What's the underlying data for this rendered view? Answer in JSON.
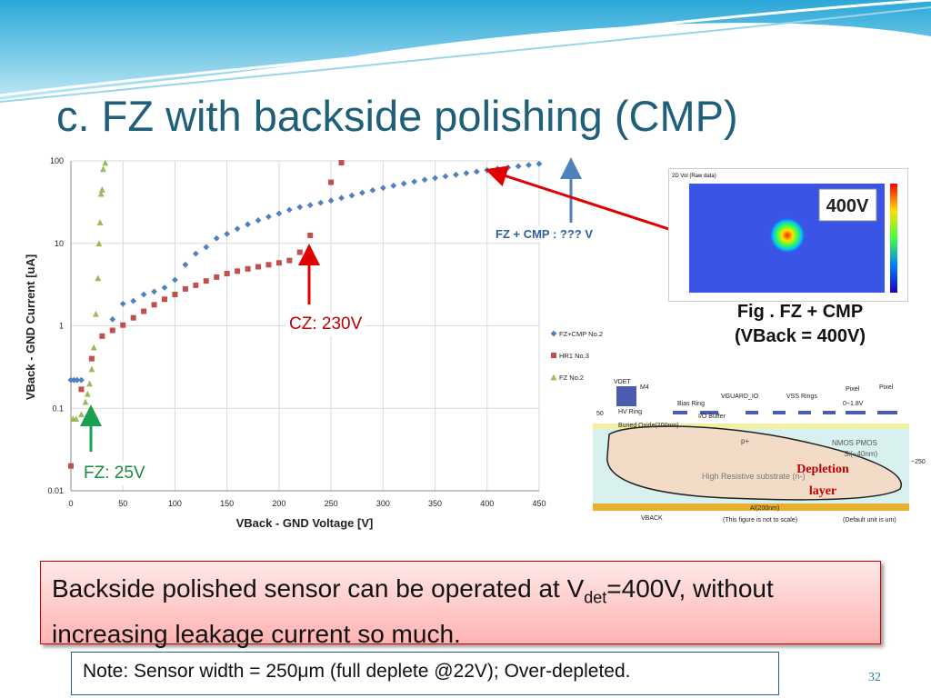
{
  "slide": {
    "title": "c. FZ with backside polishing (CMP)",
    "page_number": "32",
    "summary_pre": "Backside polished sensor can be operated at V",
    "summary_sub": "det",
    "summary_post": "=400V, without increasing leakage current so much.",
    "note": "Note: Sensor width = 250μm (full deplete @22V); Over-depleted."
  },
  "annotations": {
    "cz": "CZ: 230V",
    "fz": "FZ: 25V",
    "fzcmp": "FZ + CMP : ??? V"
  },
  "figure": {
    "caption_line1": "Fig . FZ + CMP",
    "caption_line2": "(VBack = 400V)",
    "heatmap_label": "400V",
    "heatmap_header": "2D Vol (Raw data)"
  },
  "diagram": {
    "vdet": "VDET",
    "m4": "M4",
    "hv_ring": "HV Ring",
    "bias_ring": "Bias Ring",
    "vguard": "VGUARD_IO",
    "vss": "VSS Rings",
    "pixel1": "Pixel",
    "pixel2": "Pixel",
    "range": "0~1.8V",
    "io_buffer": "I/O Buffer",
    "buried_oxide": "Buried Oxide(200nm)",
    "fifty": "50",
    "p_plus": "p+",
    "nmos_pmos": "NMOS PMOS",
    "si": "Si(~40nm)",
    "substrate": "High Resistive substrate (n-)",
    "depletion1": "Depletion",
    "depletion2": "layer",
    "al": "Al(200nm)",
    "vback": "VBACK",
    "scale_note": "(This figure is not to scale)",
    "unit_note": "(Default unit is um)",
    "dim250": "~250"
  },
  "chart_data": {
    "type": "scatter",
    "xlabel": "VBack - GND Voltage [V]",
    "ylabel": "VBack - GND Current [uA]",
    "xlim": [
      0,
      450
    ],
    "ylim": [
      0.01,
      100
    ],
    "y_scale": "log",
    "xticks": [
      "0",
      "50",
      "100",
      "150",
      "200",
      "250",
      "300",
      "350",
      "400",
      "450"
    ],
    "yticks": [
      "0.01",
      "0.1",
      "1",
      "10",
      "100"
    ],
    "grid": true,
    "legend_position": "right",
    "series": [
      {
        "name": "FZ+CMP No.2",
        "color": "#4f81bd",
        "marker": "diamond",
        "points": [
          [
            0,
            0.22
          ],
          [
            3,
            0.22
          ],
          [
            6,
            0.22
          ],
          [
            10,
            0.22
          ],
          [
            40,
            1.2
          ],
          [
            50,
            1.85
          ],
          [
            60,
            2.0
          ],
          [
            70,
            2.4
          ],
          [
            80,
            2.6
          ],
          [
            90,
            2.9
          ],
          [
            100,
            3.6
          ],
          [
            110,
            5.5
          ],
          [
            120,
            7.5
          ],
          [
            130,
            9.0
          ],
          [
            140,
            11.5
          ],
          [
            150,
            13
          ],
          [
            160,
            15
          ],
          [
            170,
            17
          ],
          [
            180,
            19
          ],
          [
            190,
            21
          ],
          [
            200,
            23
          ],
          [
            210,
            25.5
          ],
          [
            220,
            27.5
          ],
          [
            230,
            29
          ],
          [
            240,
            31
          ],
          [
            250,
            33
          ],
          [
            260,
            35.5
          ],
          [
            270,
            38
          ],
          [
            280,
            41
          ],
          [
            290,
            44
          ],
          [
            300,
            47
          ],
          [
            310,
            50
          ],
          [
            320,
            53
          ],
          [
            330,
            56
          ],
          [
            340,
            59
          ],
          [
            350,
            62
          ],
          [
            360,
            65
          ],
          [
            370,
            68
          ],
          [
            380,
            71
          ],
          [
            390,
            74
          ],
          [
            400,
            77
          ],
          [
            410,
            80
          ],
          [
            420,
            83
          ],
          [
            430,
            86
          ],
          [
            440,
            89
          ],
          [
            450,
            92
          ]
        ]
      },
      {
        "name": "HR1 No.3",
        "color": "#c0504d",
        "marker": "square",
        "points": [
          [
            0,
            0.02
          ],
          [
            10,
            0.17
          ],
          [
            20,
            0.4
          ],
          [
            30,
            0.75
          ],
          [
            40,
            0.88
          ],
          [
            50,
            1.02
          ],
          [
            60,
            1.25
          ],
          [
            70,
            1.5
          ],
          [
            80,
            1.8
          ],
          [
            90,
            2.1
          ],
          [
            100,
            2.4
          ],
          [
            110,
            2.8
          ],
          [
            120,
            3.1
          ],
          [
            130,
            3.5
          ],
          [
            140,
            3.9
          ],
          [
            150,
            4.3
          ],
          [
            160,
            4.6
          ],
          [
            170,
            4.9
          ],
          [
            180,
            5.2
          ],
          [
            190,
            5.5
          ],
          [
            200,
            5.8
          ],
          [
            210,
            6.2
          ],
          [
            220,
            7.8
          ],
          [
            230,
            12.5
          ],
          [
            250,
            55
          ],
          [
            260,
            95
          ]
        ]
      },
      {
        "name": "FZ No.2",
        "color": "#9bbb59",
        "marker": "triangle",
        "points": [
          [
            2,
            0.075
          ],
          [
            5,
            0.075
          ],
          [
            10,
            0.085
          ],
          [
            14,
            0.12
          ],
          [
            16,
            0.15
          ],
          [
            18,
            0.2
          ],
          [
            20,
            0.3
          ],
          [
            22,
            0.55
          ],
          [
            24,
            1.4
          ],
          [
            26,
            3.8
          ],
          [
            27,
            10
          ],
          [
            28,
            18
          ],
          [
            29,
            40
          ],
          [
            30,
            45
          ],
          [
            31,
            80
          ],
          [
            33,
            95
          ]
        ]
      }
    ]
  },
  "style": {
    "title_color": "#1f5f7a",
    "arrow_red": "#e00000",
    "arrow_green": "#1aa050",
    "arrow_blue": "#4f81bd"
  }
}
